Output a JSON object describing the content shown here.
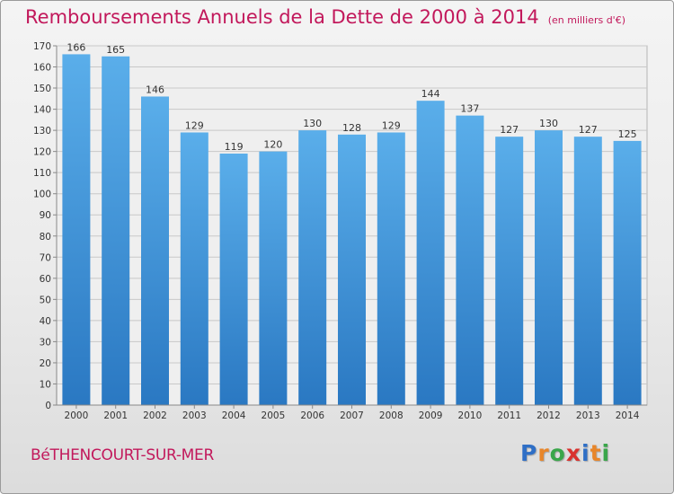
{
  "chart_data": {
    "type": "bar",
    "title": "Remboursements Annuels de la Dette de 2000 à 2014",
    "unit_note": "(en milliers d'€)",
    "categories": [
      "2000",
      "2001",
      "2002",
      "2003",
      "2004",
      "2005",
      "2006",
      "2007",
      "2008",
      "2009",
      "2010",
      "2011",
      "2012",
      "2013",
      "2014"
    ],
    "values": [
      166,
      165,
      146,
      129,
      119,
      120,
      130,
      128,
      129,
      144,
      137,
      127,
      130,
      127,
      125
    ],
    "ylim": [
      0,
      170
    ],
    "yticks": [
      0,
      10,
      20,
      30,
      40,
      50,
      60,
      70,
      80,
      90,
      100,
      110,
      120,
      130,
      140,
      150,
      160,
      170
    ],
    "grid": true,
    "bar_color": "#3a8fd8"
  },
  "footer": {
    "commune": "BéTHENCOURT-SUR-MER",
    "logo_letters": [
      {
        "ch": "P",
        "color": "#2f6fc6"
      },
      {
        "ch": "r",
        "color": "#e8862a"
      },
      {
        "ch": "o",
        "color": "#3aa64a"
      },
      {
        "ch": "x",
        "color": "#d9322e"
      },
      {
        "ch": "i",
        "color": "#2f6fc6"
      },
      {
        "ch": "t",
        "color": "#e8862a"
      },
      {
        "ch": "i",
        "color": "#3aa64a"
      }
    ]
  }
}
